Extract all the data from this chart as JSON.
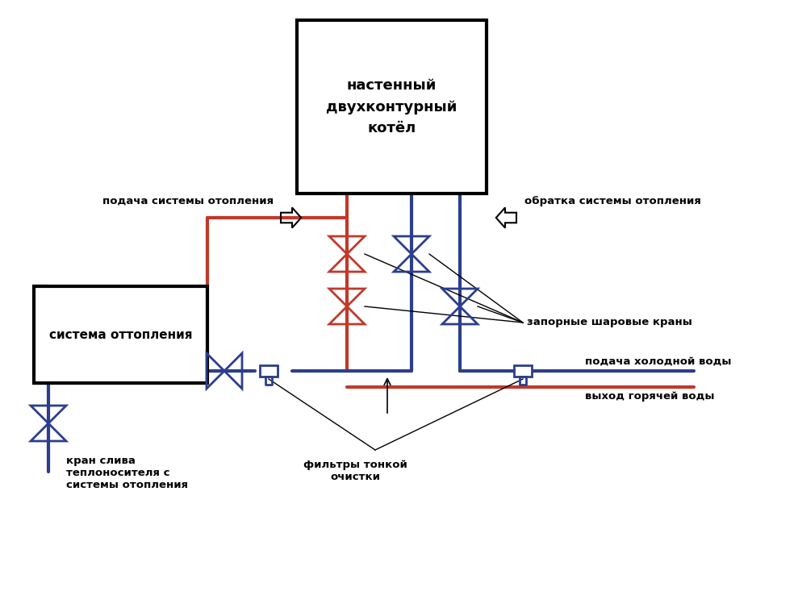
{
  "bg_color": "#ffffff",
  "red_color": "#c0392b",
  "blue_color": "#2c3e8c",
  "black_color": "#000000",
  "lw_pipe": 3.0,
  "lw_valve": 2.0,
  "lw_thin": 1.0,
  "boiler_text": "настенный\nдвухконтурный\nкотёл",
  "system_text": "система оттопления",
  "label_podacha": "подача системы отопления",
  "label_obratka": "обратка системы отопления",
  "label_zapornye": "запорные шаровые краны",
  "label_podacha_vody": "подача холодной воды",
  "label_vyhod": "выход горячей воды",
  "label_kran": "кран слива\nтеплоносителя с\nсистемы отопления",
  "label_filtry": "фильтры тонкой\nочистки",
  "font_size": 9.5
}
